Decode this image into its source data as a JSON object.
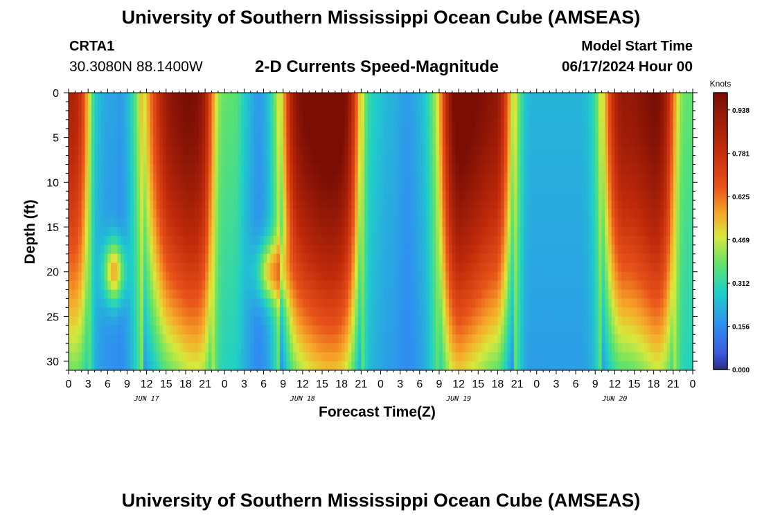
{
  "header": {
    "title": "University of Southern Mississippi Ocean Cube (AMSEAS)",
    "station": "CRTA1",
    "coords": "30.3080N  88.1400W",
    "subtitle": "2-D Currents Speed-Magnitude",
    "model_start_label": "Model Start Time",
    "model_start_value": "06/17/2024 Hour 00"
  },
  "footer": {
    "title": "University of Southern Mississippi Ocean Cube (AMSEAS)"
  },
  "chart_data": {
    "type": "heatmap",
    "title": "2-D Currents Speed-Magnitude",
    "xlabel": "Forecast Time(Z)",
    "ylabel": "Depth (ft)",
    "x_tick_labels": [
      "0",
      "3",
      "6",
      "9",
      "12",
      "15",
      "18",
      "21",
      "0",
      "3",
      "6",
      "9",
      "12",
      "15",
      "18",
      "21",
      "0",
      "3",
      "6",
      "9",
      "12",
      "15",
      "18",
      "21",
      "0",
      "3",
      "6",
      "9",
      "12",
      "15",
      "18",
      "21",
      "0"
    ],
    "day_labels": [
      "JUN 17",
      "JUN 18",
      "JUN 19",
      "JUN 20"
    ],
    "y_ticks": [
      0,
      5,
      10,
      15,
      20,
      25,
      30
    ],
    "ylim": [
      0,
      31
    ],
    "xlim_hours": [
      0,
      96
    ],
    "colorbar": {
      "label": "Knots",
      "ticks": [
        "0.938",
        "0.781",
        "0.625",
        "0.469",
        "0.312",
        "0.156",
        "0.000"
      ],
      "range": [
        0,
        1.0
      ]
    },
    "speed_profile_hours": [
      0,
      1,
      2,
      3,
      4,
      5,
      6,
      7,
      8,
      9,
      10,
      11,
      12,
      13,
      14,
      15,
      16,
      17,
      18,
      19,
      20,
      21,
      22,
      23,
      24,
      25,
      26,
      27,
      28,
      29,
      30,
      31,
      32,
      33,
      34,
      35,
      36,
      37,
      38,
      39,
      40,
      41,
      42,
      43,
      44,
      45,
      46,
      47,
      48,
      49,
      50,
      51,
      52,
      53,
      54,
      55,
      56,
      57,
      58,
      59,
      60,
      61,
      62,
      63,
      64,
      65,
      66,
      67,
      68,
      69,
      70,
      71,
      72,
      73,
      74,
      75,
      76,
      77,
      78,
      79,
      80,
      81,
      82,
      83,
      84,
      85,
      86,
      87,
      88,
      89,
      90,
      91,
      92,
      93,
      94,
      95,
      96
    ],
    "surface_speed_knots": [
      0.85,
      0.82,
      0.7,
      0.45,
      0.2,
      0.15,
      0.12,
      0.12,
      0.1,
      0.15,
      0.25,
      0.4,
      0.6,
      0.75,
      0.88,
      0.97,
      1.0,
      1.0,
      1.0,
      0.97,
      0.92,
      0.8,
      0.55,
      0.35,
      0.3,
      0.3,
      0.28,
      0.2,
      0.15,
      0.1,
      0.12,
      0.2,
      0.35,
      0.6,
      0.85,
      0.97,
      1.0,
      1.0,
      1.0,
      1.0,
      1.0,
      1.0,
      0.98,
      0.9,
      0.7,
      0.45,
      0.25,
      0.2,
      0.18,
      0.15,
      0.15,
      0.12,
      0.1,
      0.12,
      0.15,
      0.2,
      0.3,
      0.45,
      0.7,
      0.9,
      1.0,
      1.0,
      1.0,
      1.0,
      1.0,
      1.0,
      1.0,
      0.85,
      0.6,
      0.35,
      0.2,
      0.15,
      0.15,
      0.15,
      0.15,
      0.15,
      0.15,
      0.15,
      0.15,
      0.15,
      0.18,
      0.25,
      0.45,
      0.7,
      0.9,
      1.0,
      1.0,
      1.0,
      1.0,
      1.0,
      1.0,
      0.95,
      0.8,
      0.55,
      0.35,
      0.3,
      0.3
    ]
  }
}
